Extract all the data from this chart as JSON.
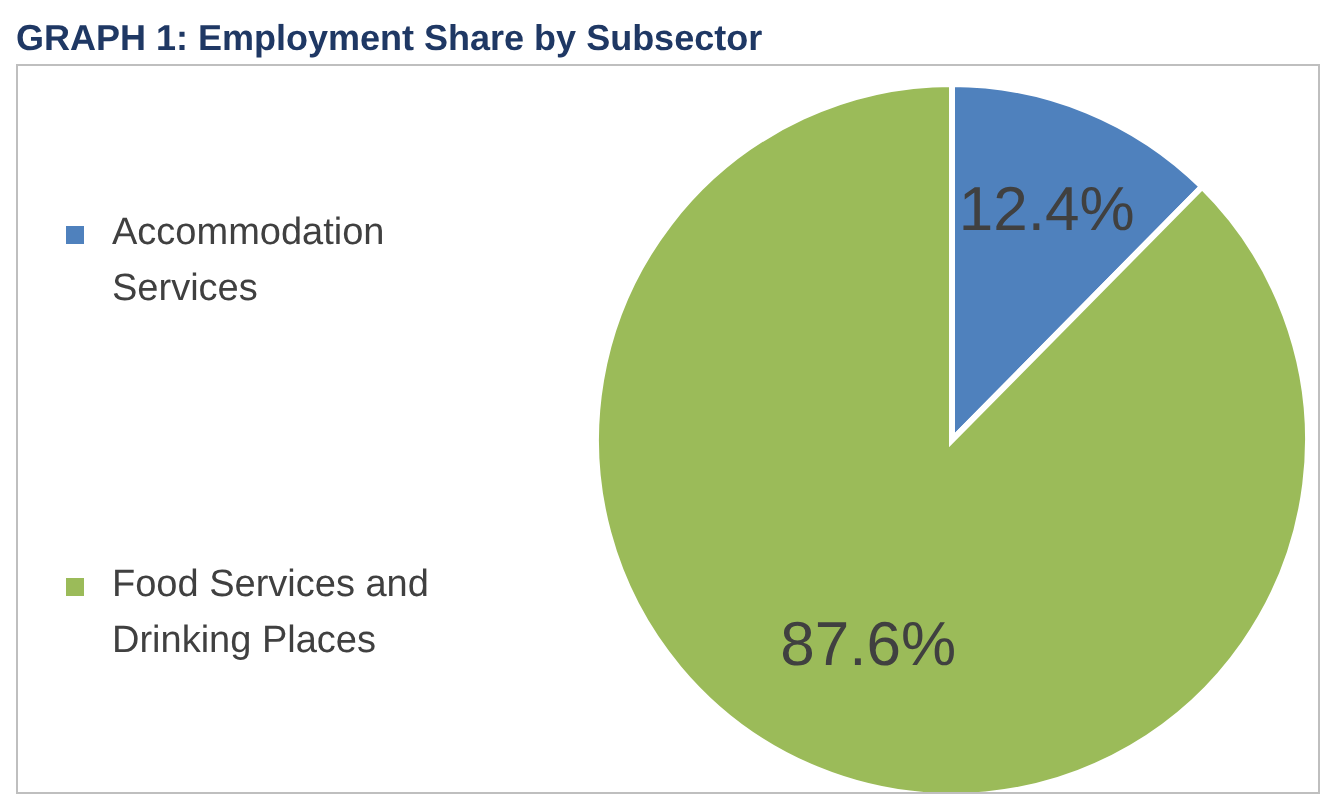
{
  "chart_data": {
    "type": "pie",
    "title": "GRAPH 1: Employment Share by Subsector",
    "categories": [
      "Accommodation Services",
      "Food Services and Drinking Places"
    ],
    "values": [
      12.4,
      87.6
    ],
    "colors": [
      "#4f81bd",
      "#9bbb59"
    ],
    "value_labels": [
      "12.4%",
      "87.6%"
    ],
    "legend": "left"
  }
}
